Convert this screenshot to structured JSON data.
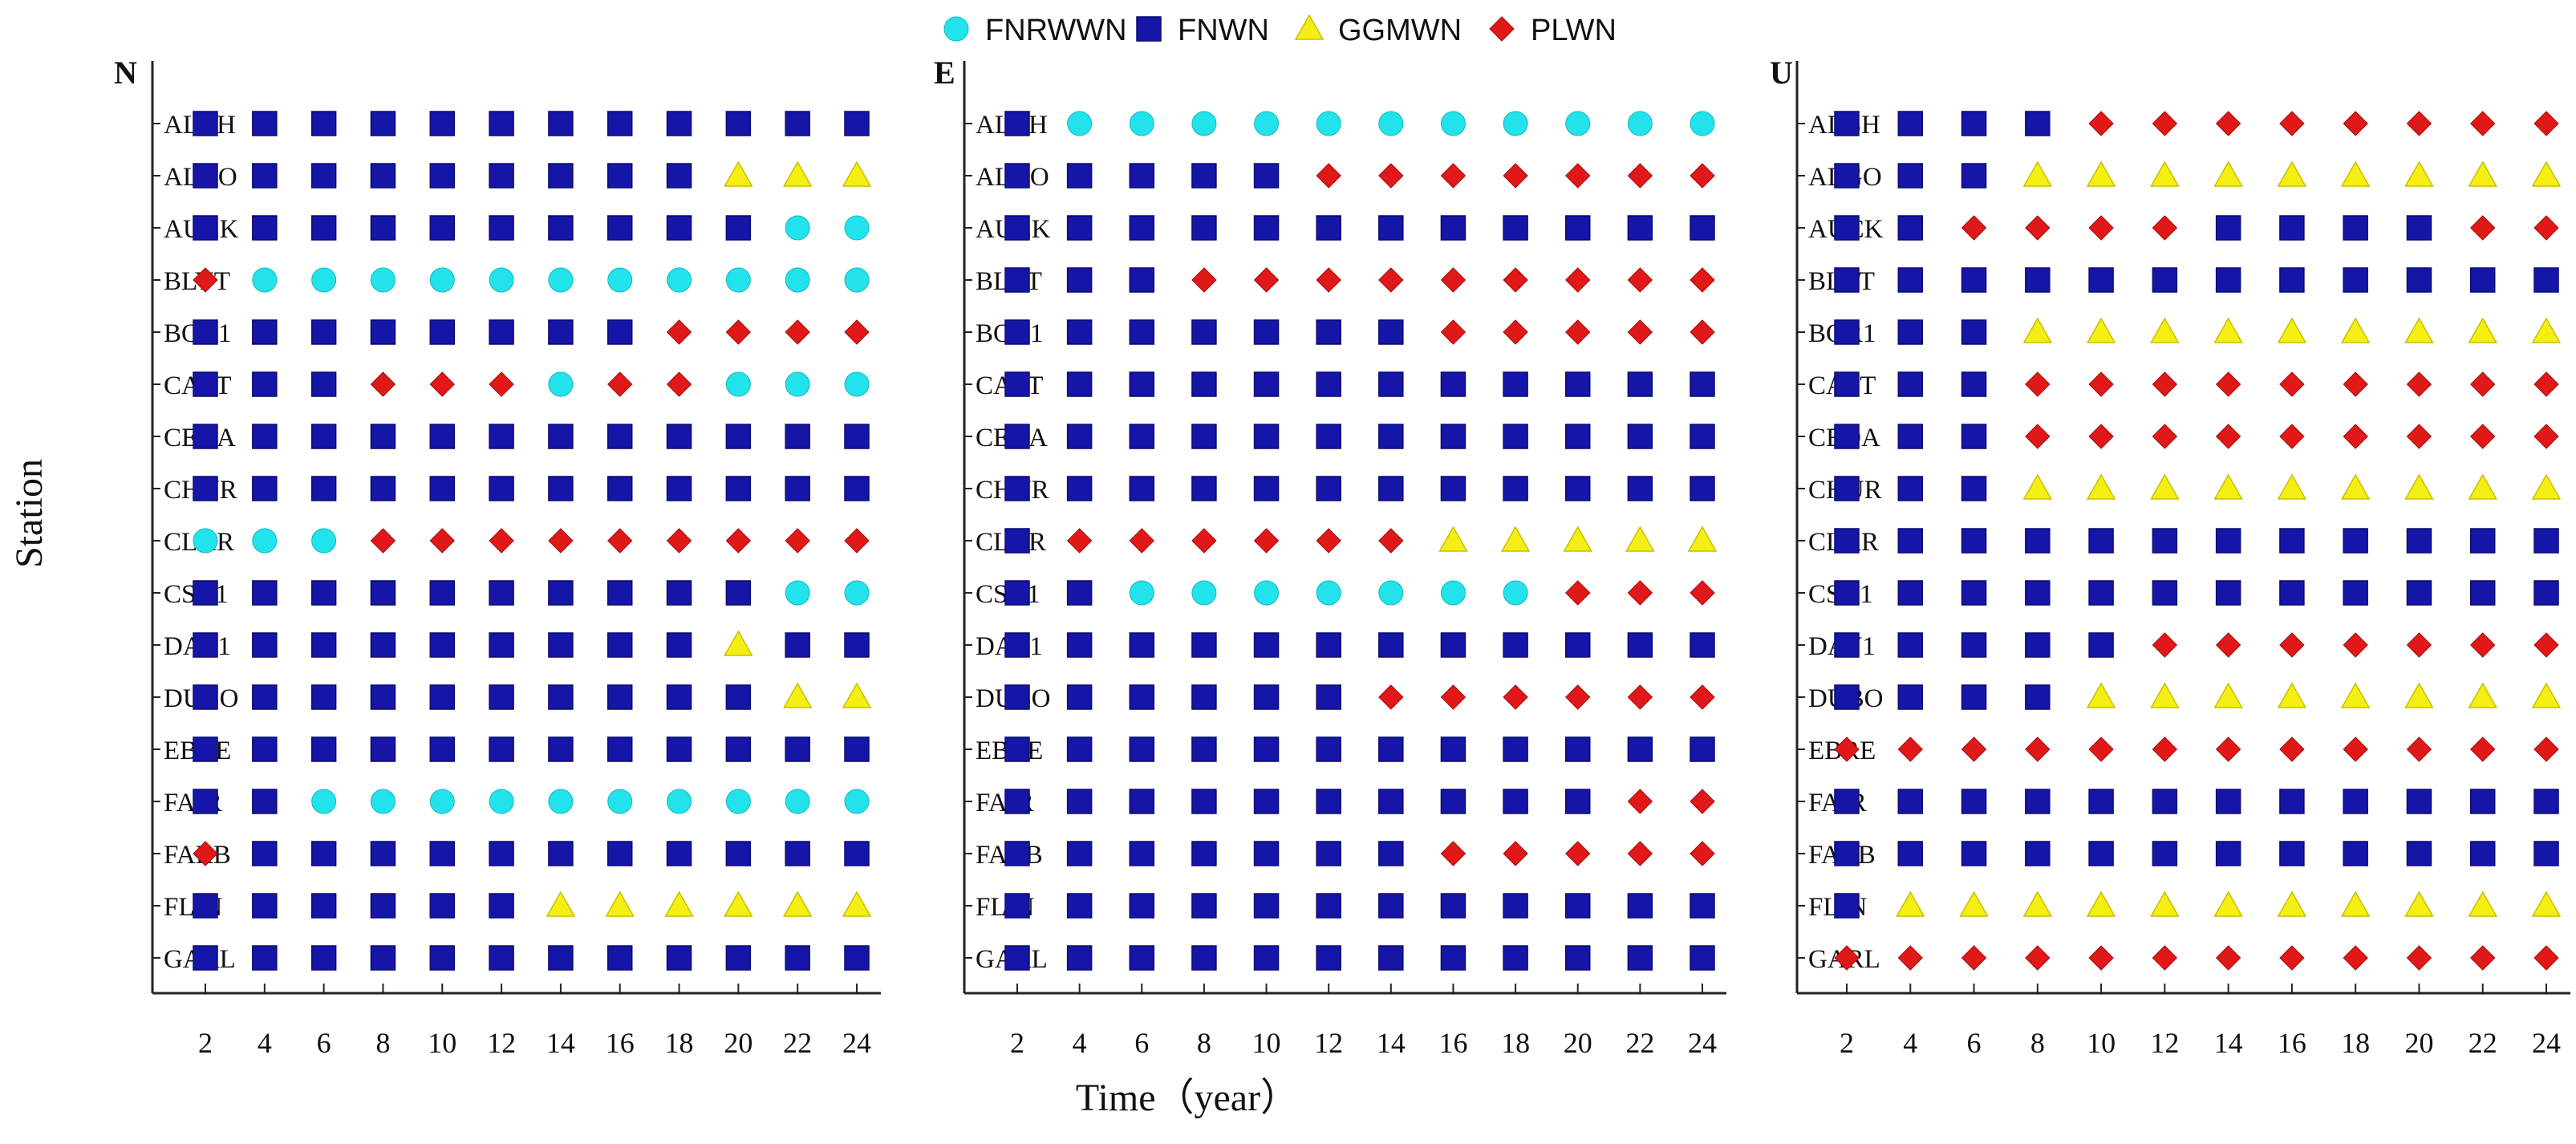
{
  "chart_data": {
    "type": "scatter",
    "xlabel": "Time（year）",
    "ylabel": "Station",
    "x": [
      2,
      4,
      6,
      8,
      10,
      12,
      14,
      16,
      18,
      20,
      22,
      24
    ],
    "xlim": [
      0,
      25
    ],
    "stations": [
      "ALBH",
      "ALGO",
      "AUCK",
      "BLYT",
      "BOR1",
      "CAST",
      "CEDA",
      "CHUR",
      "CLAR",
      "CSN1",
      "DAV1",
      "DUBO",
      "EBRE",
      "FAIR",
      "FARB",
      "FLIN",
      "GARL"
    ],
    "legend": {
      "position": "top-center",
      "entries": [
        {
          "code": "C",
          "name": "FNRWWN",
          "marker": "circle",
          "color": "#22e3ec"
        },
        {
          "code": "S",
          "name": "FNWN",
          "marker": "square",
          "color": "#1515a8"
        },
        {
          "code": "T",
          "name": "GGMWN",
          "marker": "triangle",
          "color": "#f5ee12"
        },
        {
          "code": "D",
          "name": "PLWN",
          "marker": "diamond",
          "color": "#e01818"
        }
      ]
    },
    "panels": [
      {
        "title": "N",
        "models": [
          "SSSSSSSSSSSS",
          "SSSSSSSSSTTT",
          "SSSSSSSSSSCC",
          "DCCCCCCCCCCC",
          "SSSSSSSSDDDD",
          "SSSDDDCDDCCC",
          "SSSSSSSSSSSS",
          "SSSSSSSSSSSS",
          "CCCDDDDDDDDD",
          "SSSSSSSSSSCC",
          "SSSSSSSSSTSS",
          "SSSSSSSSSSTT",
          "SSSSSSSSSSSS",
          "SSCCCCCCCCCC",
          "DSSSSSSSSSSS",
          "SSSSSSTTTTTT",
          "SSSSSSSSSSSS"
        ]
      },
      {
        "title": "E",
        "models": [
          "SCCCCCCCCCCC",
          "SSSSSDDDDDDD",
          "SSSSSSSSSSSS",
          "SSSDDDDDDDDD",
          "SSSSSSSDDDDD",
          "SSSSSSSSSSSS",
          "SSSSSSSSSSSS",
          "SSSSSSSSSSSS",
          "SDDDDDDTTTTT",
          "SSCCCCCCCDDD",
          "SSSSSSSSSSSS",
          "SSSSSSDDDDDD",
          "SSSSSSSSSSSS",
          "SSSSSSSSSSDD",
          "SSSSSSSDDDDD",
          "SSSSSSSSSSSS",
          "SSSSSSSSSSSS"
        ]
      },
      {
        "title": "U",
        "models": [
          "SSSSDDDDDDDD",
          "SSSTTTTTTTTT",
          "SSDDDDSSSSDD",
          "SSSSSSSSSSSS",
          "SSSTTTTTTTTT",
          "SSSDDDDDDDDD",
          "SSSDDDDDDDDD",
          "SSSTTTTTTTTT",
          "SSSSSSSSSSSS",
          "SSSSSSSSSSSS",
          "SSSSSDDDDDDD",
          "SSSSTTTTTTTT",
          "DDDDDDDDDDDD",
          "SSSSSSSSSSSS",
          "SSSSSSSSSSSS",
          "STTTTTTTTTTT",
          "DDDDDDDDDDDD"
        ]
      }
    ]
  }
}
